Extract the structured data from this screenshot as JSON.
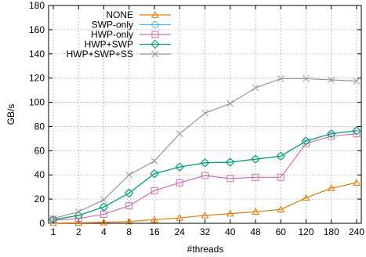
{
  "chart_data": {
    "type": "line",
    "title": "",
    "xlabel": "#threads",
    "ylabel": "GB/s",
    "categories": [
      "1",
      "2",
      "4",
      "8",
      "16",
      "24",
      "32",
      "40",
      "48",
      "60",
      "120",
      "180",
      "240"
    ],
    "ylim": [
      0,
      180
    ],
    "yticks": [
      0,
      20,
      40,
      60,
      80,
      100,
      120,
      140,
      160,
      180
    ],
    "grid": true,
    "legend_position": "top-left",
    "series": [
      {
        "name": "NONE",
        "color": "#e07b00",
        "marker": "triangle",
        "values": [
          0.2,
          0.4,
          0.8,
          1.5,
          3,
          4.5,
          6.5,
          8,
          9.5,
          11.5,
          21,
          29,
          33.5
        ]
      },
      {
        "name": "SWP-only",
        "color": "#4fb6e6",
        "marker": "circle",
        "values": [
          3,
          6.5,
          13.5,
          25,
          41,
          46.5,
          50,
          50.5,
          53,
          55.5,
          68,
          74,
          76.5
        ]
      },
      {
        "name": "HWP-only",
        "color": "#cc6fb0",
        "marker": "square",
        "values": [
          2.5,
          4,
          7.5,
          14.5,
          27,
          33.5,
          39.5,
          37,
          38,
          38,
          66,
          72,
          74
        ]
      },
      {
        "name": "HWP+SWP",
        "color": "#009e73",
        "marker": "diamond",
        "values": [
          3,
          6.5,
          13.5,
          25,
          41,
          46.5,
          50,
          50.5,
          53,
          55.5,
          68,
          74,
          76.5
        ]
      },
      {
        "name": "HWP+SWP+SS",
        "color": "#999999",
        "marker": "x",
        "values": [
          4,
          9.5,
          19.5,
          40,
          51.5,
          74,
          91,
          99,
          112,
          119.5,
          119.5,
          118.5,
          117.5
        ]
      }
    ]
  }
}
